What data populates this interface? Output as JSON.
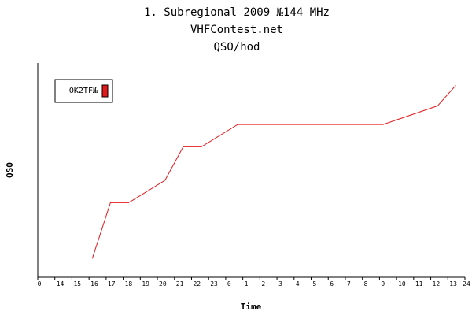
{
  "chart_data": {
    "type": "line",
    "title_lines": [
      "1. Subregional 2009  №144 MHz",
      "VHFContest.net",
      "QSO/hod"
    ],
    "xlabel": "Time",
    "ylabel": "QSO",
    "x_tick_labels": [
      "0",
      "14",
      "15",
      "16",
      "17",
      "18",
      "19",
      "20",
      "21",
      "22",
      "23",
      "0",
      "1",
      "2",
      "3",
      "4",
      "5",
      "6",
      "7",
      "8",
      "9",
      "10",
      "11",
      "12",
      "13",
      "24"
    ],
    "legend": {
      "placement": "top-left",
      "entries": [
        {
          "label": "OK2TF№",
          "color": "#e31a1c"
        }
      ]
    },
    "grid": false,
    "series": [
      {
        "name": "OK2TF№",
        "color": "#e31a1c",
        "x": [
          16,
          17,
          18,
          20,
          21,
          22,
          24,
          32,
          35,
          36
        ],
        "y": [
          1,
          4,
          4,
          5.2,
          7,
          7,
          8.2,
          8.2,
          9.2,
          10.3
        ]
      }
    ],
    "xlim": [
      13,
      36.5
    ],
    "ylim": [
      0,
      11.5
    ]
  }
}
